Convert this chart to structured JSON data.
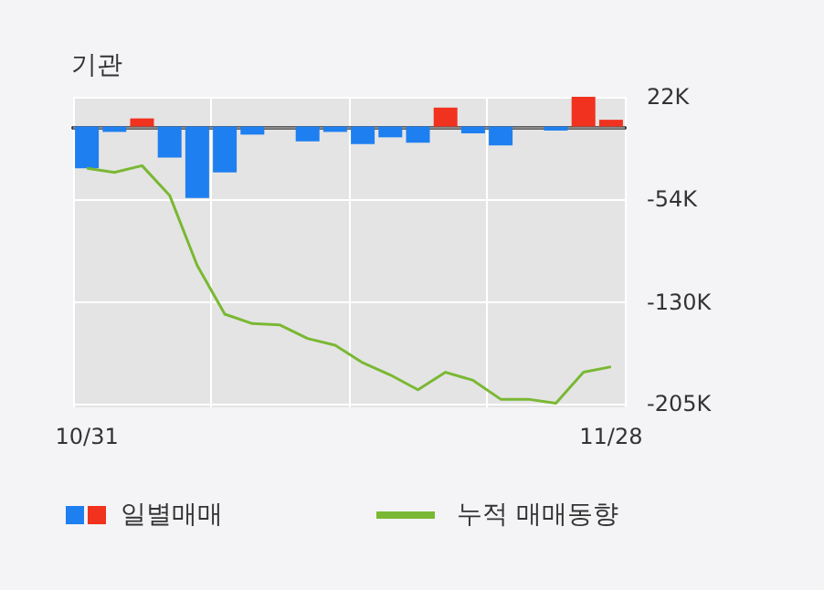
{
  "chart_data": {
    "type": "bar",
    "title": "기관",
    "categories": [
      "10/31",
      null,
      null,
      null,
      null,
      null,
      null,
      null,
      null,
      null,
      null,
      null,
      null,
      null,
      null,
      null,
      null,
      null,
      null,
      "11/28"
    ],
    "series": [
      {
        "name": "일별매매",
        "colors": [
          "#1e7ff0",
          "#1e7ff0",
          "#f0321e",
          "#1e7ff0",
          "#1e7ff0",
          "#1e7ff0",
          "#1e7ff0",
          "#1e7ff0",
          "#1e7ff0",
          "#1e7ff0",
          "#1e7ff0",
          "#1e7ff0",
          "#1e7ff0",
          "#f0321e",
          "#1e7ff0",
          "#1e7ff0",
          "#1e7ff0",
          "#1e7ff0",
          "#f0321e",
          "#f0321e"
        ],
        "values": [
          -31,
          -4,
          6,
          -23,
          -53,
          -34,
          -6,
          0,
          -11,
          -4,
          -13,
          -8,
          -12,
          14,
          -5,
          -14,
          0,
          -3,
          22,
          5
        ]
      },
      {
        "name": "누적 매매동향",
        "type": "line",
        "color": "#7ab833",
        "values": [
          -31,
          -34,
          -29,
          -51,
          -103,
          -139,
          -146,
          -147,
          -157,
          -162,
          -175,
          -184,
          -195,
          -182,
          -188,
          -202,
          -202,
          -205,
          -182,
          -178
        ]
      }
    ],
    "ylim": [
      -208,
      22
    ],
    "yticks": [
      {
        "value": 22,
        "label": "22K"
      },
      {
        "value": -54,
        "label": "-54K"
      },
      {
        "value": -130,
        "label": "-130K"
      },
      {
        "value": -205,
        "label": "-205K"
      }
    ],
    "grid": true,
    "legend": "bottom",
    "marker": "none"
  }
}
